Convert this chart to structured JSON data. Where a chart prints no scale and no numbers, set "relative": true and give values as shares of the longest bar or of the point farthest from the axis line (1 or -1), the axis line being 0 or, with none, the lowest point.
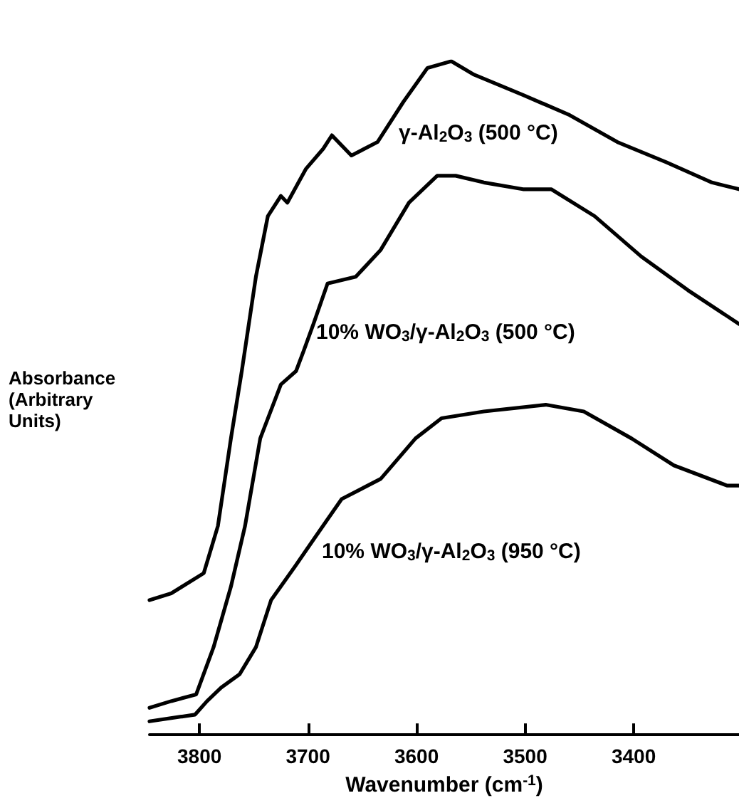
{
  "chart_data": {
    "type": "line",
    "relative": true,
    "xlabel": "Wavenumber (cm$^{-1}$)",
    "ylabel": "Absorbance (Arbitrary Units)",
    "xlim": [
      3846,
      3303
    ],
    "xticks": [
      3800,
      3700,
      3600,
      3500,
      3400
    ],
    "tick_labels": "x",
    "grid": false,
    "legend": false,
    "marker": "none",
    "line_style": "solid",
    "series": [
      {
        "name": "γ-Al$_{2}$O$_{3}$ (500 °C)",
        "color": "#000000",
        "x": [
          3846,
          3826,
          3796,
          3783,
          3771,
          3761,
          3748,
          3737,
          3725,
          3719,
          3702,
          3686,
          3678,
          3660,
          3636,
          3612,
          3590,
          3568,
          3547,
          3502,
          3459,
          3415,
          3370,
          3328,
          3303
        ],
        "values": [
          0.2,
          0.21,
          0.24,
          0.31,
          0.44,
          0.54,
          0.68,
          0.77,
          0.8,
          0.79,
          0.84,
          0.87,
          0.89,
          0.86,
          0.88,
          0.94,
          0.99,
          1.0,
          0.98,
          0.95,
          0.92,
          0.88,
          0.85,
          0.82,
          0.81
        ]
      },
      {
        "name": "10% WO$_{3}$/γ-Al$_{2}$O$_{3}$ (500 °C)",
        "color": "#000000",
        "x": [
          3846,
          3826,
          3803,
          3787,
          3771,
          3758,
          3744,
          3725,
          3711,
          3704,
          3695,
          3682,
          3656,
          3633,
          3607,
          3581,
          3564,
          3538,
          3502,
          3476,
          3436,
          3393,
          3350,
          3303
        ],
        "values": [
          0.04,
          0.05,
          0.06,
          0.13,
          0.22,
          0.31,
          0.44,
          0.52,
          0.54,
          0.57,
          0.61,
          0.67,
          0.68,
          0.72,
          0.79,
          0.83,
          0.83,
          0.82,
          0.81,
          0.81,
          0.77,
          0.71,
          0.66,
          0.61
        ]
      },
      {
        "name": "10% WO$_{3}$/γ-Al$_{2}$O$_{3}$ (950 °C)",
        "color": "#000000",
        "x": [
          3846,
          3804,
          3793,
          3780,
          3763,
          3748,
          3734,
          3712,
          3682,
          3669,
          3633,
          3601,
          3577,
          3538,
          3481,
          3446,
          3402,
          3363,
          3314,
          3303
        ],
        "values": [
          0.02,
          0.03,
          0.05,
          0.07,
          0.09,
          0.13,
          0.2,
          0.25,
          0.32,
          0.35,
          0.38,
          0.44,
          0.47,
          0.48,
          0.49,
          0.48,
          0.44,
          0.4,
          0.37,
          0.37
        ]
      }
    ]
  }
}
